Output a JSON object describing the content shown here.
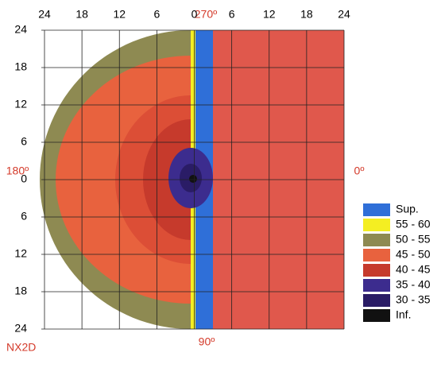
{
  "top_ticks": [
    "24",
    "18",
    "12",
    "6",
    "0",
    "6",
    "12",
    "18",
    "24"
  ],
  "left_ticks": [
    "24",
    "18",
    "12",
    "6",
    "0",
    "6",
    "12",
    "18",
    "24"
  ],
  "angle_labels": {
    "top": "270º",
    "left": "180º",
    "right": "0º",
    "bottom": "90º"
  },
  "caption": "NX2D",
  "legend": [
    {
      "label": "Sup.",
      "color": "#2f6fd8"
    },
    {
      "label": "55 - 60",
      "color": "#f4ee22"
    },
    {
      "label": "50 - 55",
      "color": "#8e8a52"
    },
    {
      "label": "45 - 50",
      "color": "#e8623e"
    },
    {
      "label": "40 - 45",
      "color": "#c63a2c"
    },
    {
      "label": "35 - 40",
      "color": "#3c2c8e"
    },
    {
      "label": "30 - 35",
      "color": "#2a1c66"
    },
    {
      "label": "Inf.",
      "color": "#111111"
    }
  ]
}
